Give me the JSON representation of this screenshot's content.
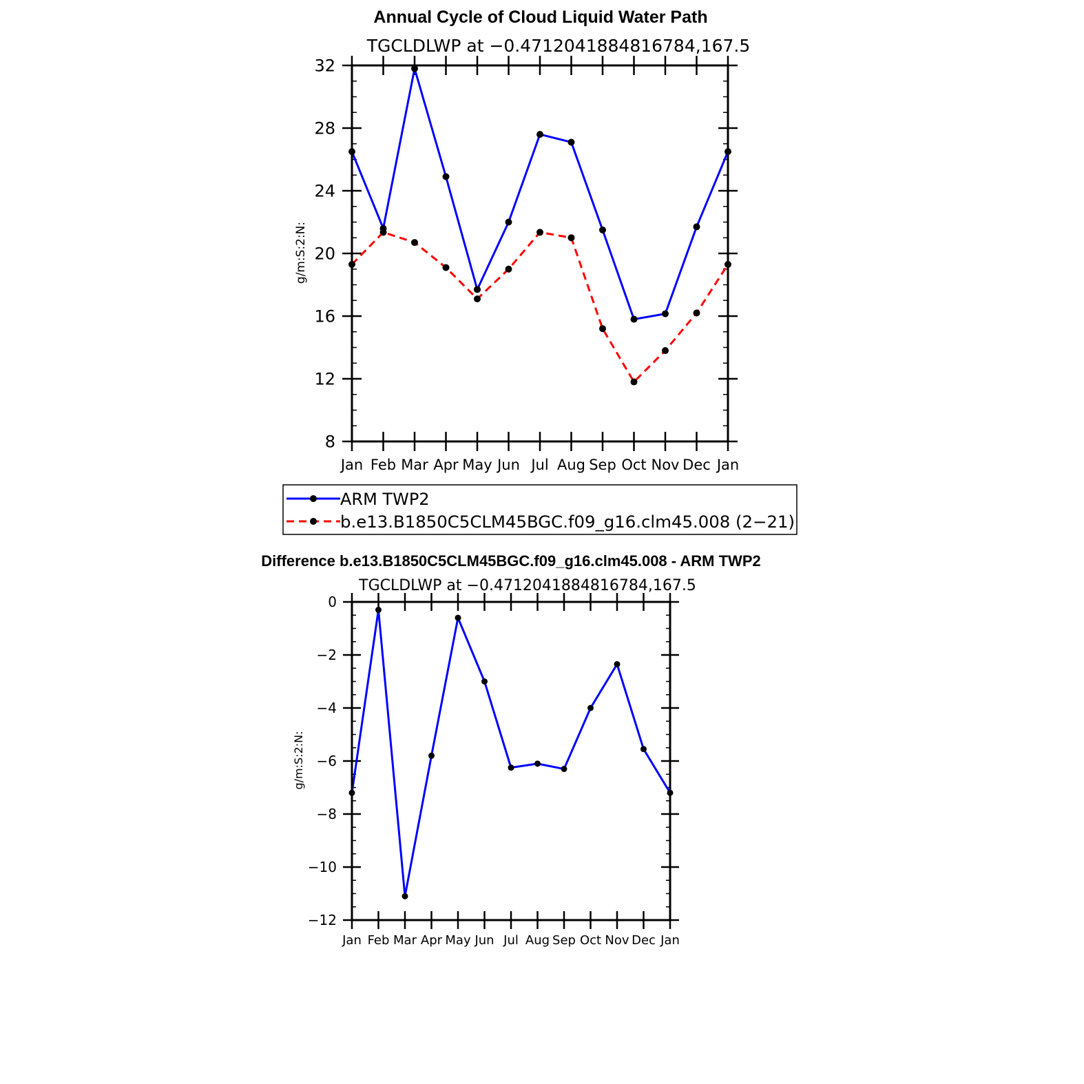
{
  "chart_data": [
    {
      "type": "line",
      "title": "Annual Cycle of Cloud Liquid Water Path",
      "subtitle": "TGCLDLWP at −0.4712041884816784,167.5",
      "xlabel": "",
      "ylabel": "g/m:S:2:N:",
      "ylim": [
        8,
        32
      ],
      "yticks": [
        "8",
        "12",
        "16",
        "20",
        "24",
        "28",
        "32"
      ],
      "categories": [
        "Jan",
        "Feb",
        "Mar",
        "Apr",
        "May",
        "Jun",
        "Jul",
        "Aug",
        "Sep",
        "Oct",
        "Nov",
        "Dec",
        "Jan"
      ],
      "series": [
        {
          "name": "ARM TWP2",
          "color": "#0000ff",
          "dash": "solid",
          "values": [
            26.5,
            21.6,
            31.8,
            24.9,
            17.7,
            22.0,
            27.6,
            27.1,
            21.5,
            15.8,
            16.15,
            21.7,
            26.5
          ]
        },
        {
          "name": "b.e13.B1850C5CLM45BGC.f09_g16.clm45.008 (2−21)",
          "color": "#ff0000",
          "dash": "dashed",
          "values": [
            19.3,
            21.35,
            20.7,
            19.1,
            17.1,
            19.0,
            21.35,
            21.0,
            15.2,
            11.8,
            13.8,
            16.2,
            19.3
          ]
        }
      ],
      "legend": "below"
    },
    {
      "type": "line",
      "title": "Difference b.e13.B1850C5CLM45BGC.f09_g16.clm45.008 - ARM TWP2",
      "subtitle": "TGCLDLWP at −0.4712041884816784,167.5",
      "xlabel": "",
      "ylabel": "g/m:S:2:N:",
      "ylim": [
        -12,
        0
      ],
      "yticks": [
        "−12",
        "−10",
        "−8",
        "−6",
        "−4",
        "−2",
        "0"
      ],
      "categories": [
        "Jan",
        "Feb",
        "Mar",
        "Apr",
        "May",
        "Jun",
        "Jul",
        "Aug",
        "Sep",
        "Oct",
        "Nov",
        "Dec",
        "Jan"
      ],
      "series": [
        {
          "name": "Difference",
          "color": "#0000ff",
          "dash": "solid",
          "values": [
            -7.2,
            -0.3,
            -11.1,
            -5.8,
            -0.6,
            -3.0,
            -6.25,
            -6.1,
            -6.3,
            -4.0,
            -2.35,
            -5.55,
            -7.2
          ]
        }
      ]
    }
  ]
}
